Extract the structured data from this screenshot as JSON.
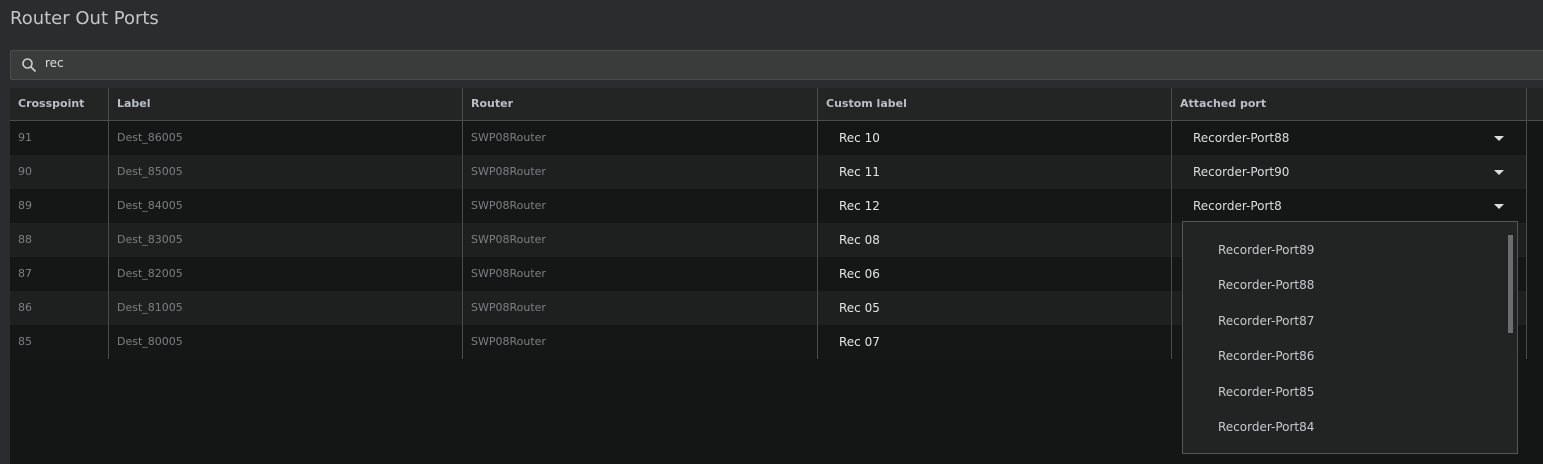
{
  "title": "Router Out Ports",
  "search": {
    "value": "rec"
  },
  "columns": [
    "Crosspoint",
    "Label",
    "Router",
    "Custom label",
    "Attached port"
  ],
  "rows": [
    {
      "crosspoint": "91",
      "label": "Dest_86005",
      "router": "SWP08Router",
      "custom": "Rec 10",
      "port": "Recorder-Port88"
    },
    {
      "crosspoint": "90",
      "label": "Dest_85005",
      "router": "SWP08Router",
      "custom": "Rec 11",
      "port": "Recorder-Port90"
    },
    {
      "crosspoint": "89",
      "label": "Dest_84005",
      "router": "SWP08Router",
      "custom": "Rec 12",
      "port": "Recorder-Port8"
    },
    {
      "crosspoint": "88",
      "label": "Dest_83005",
      "router": "SWP08Router",
      "custom": "Rec 08",
      "port": ""
    },
    {
      "crosspoint": "87",
      "label": "Dest_82005",
      "router": "SWP08Router",
      "custom": "Rec 06",
      "port": ""
    },
    {
      "crosspoint": "86",
      "label": "Dest_81005",
      "router": "SWP08Router",
      "custom": "Rec 05",
      "port": ""
    },
    {
      "crosspoint": "85",
      "label": "Dest_80005",
      "router": "SWP08Router",
      "custom": "Rec 07",
      "port": ""
    }
  ],
  "dropdown": {
    "options": [
      "Recorder-Port89",
      "Recorder-Port88",
      "Recorder-Port87",
      "Recorder-Port86",
      "Recorder-Port85",
      "Recorder-Port84"
    ]
  }
}
